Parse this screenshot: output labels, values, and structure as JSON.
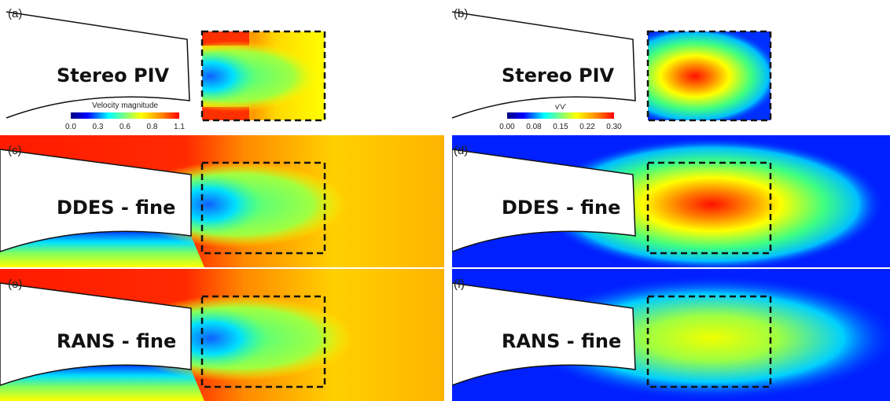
{
  "panels": [
    {
      "label": "(a)",
      "title": "Stereo PIV"
    },
    {
      "label": "(b)",
      "title": "Stereo PIV"
    },
    {
      "label": "(c)",
      "title": "DDES - fine"
    },
    {
      "label": "(d)",
      "title": "DDES -  fine"
    },
    {
      "label": "(e)",
      "title": "RANS - fine"
    },
    {
      "label": "(f)",
      "title": "RANS - fine"
    }
  ],
  "colorbars": [
    {
      "title": "Velocity magnitude",
      "ticks": [
        "0.0",
        "0.3",
        "0.6",
        "0.8",
        "1.1"
      ]
    },
    {
      "title": "v'v'",
      "ticks": [
        "0.00",
        "0.08",
        "0.15",
        "0.22",
        "0.30"
      ]
    }
  ]
}
